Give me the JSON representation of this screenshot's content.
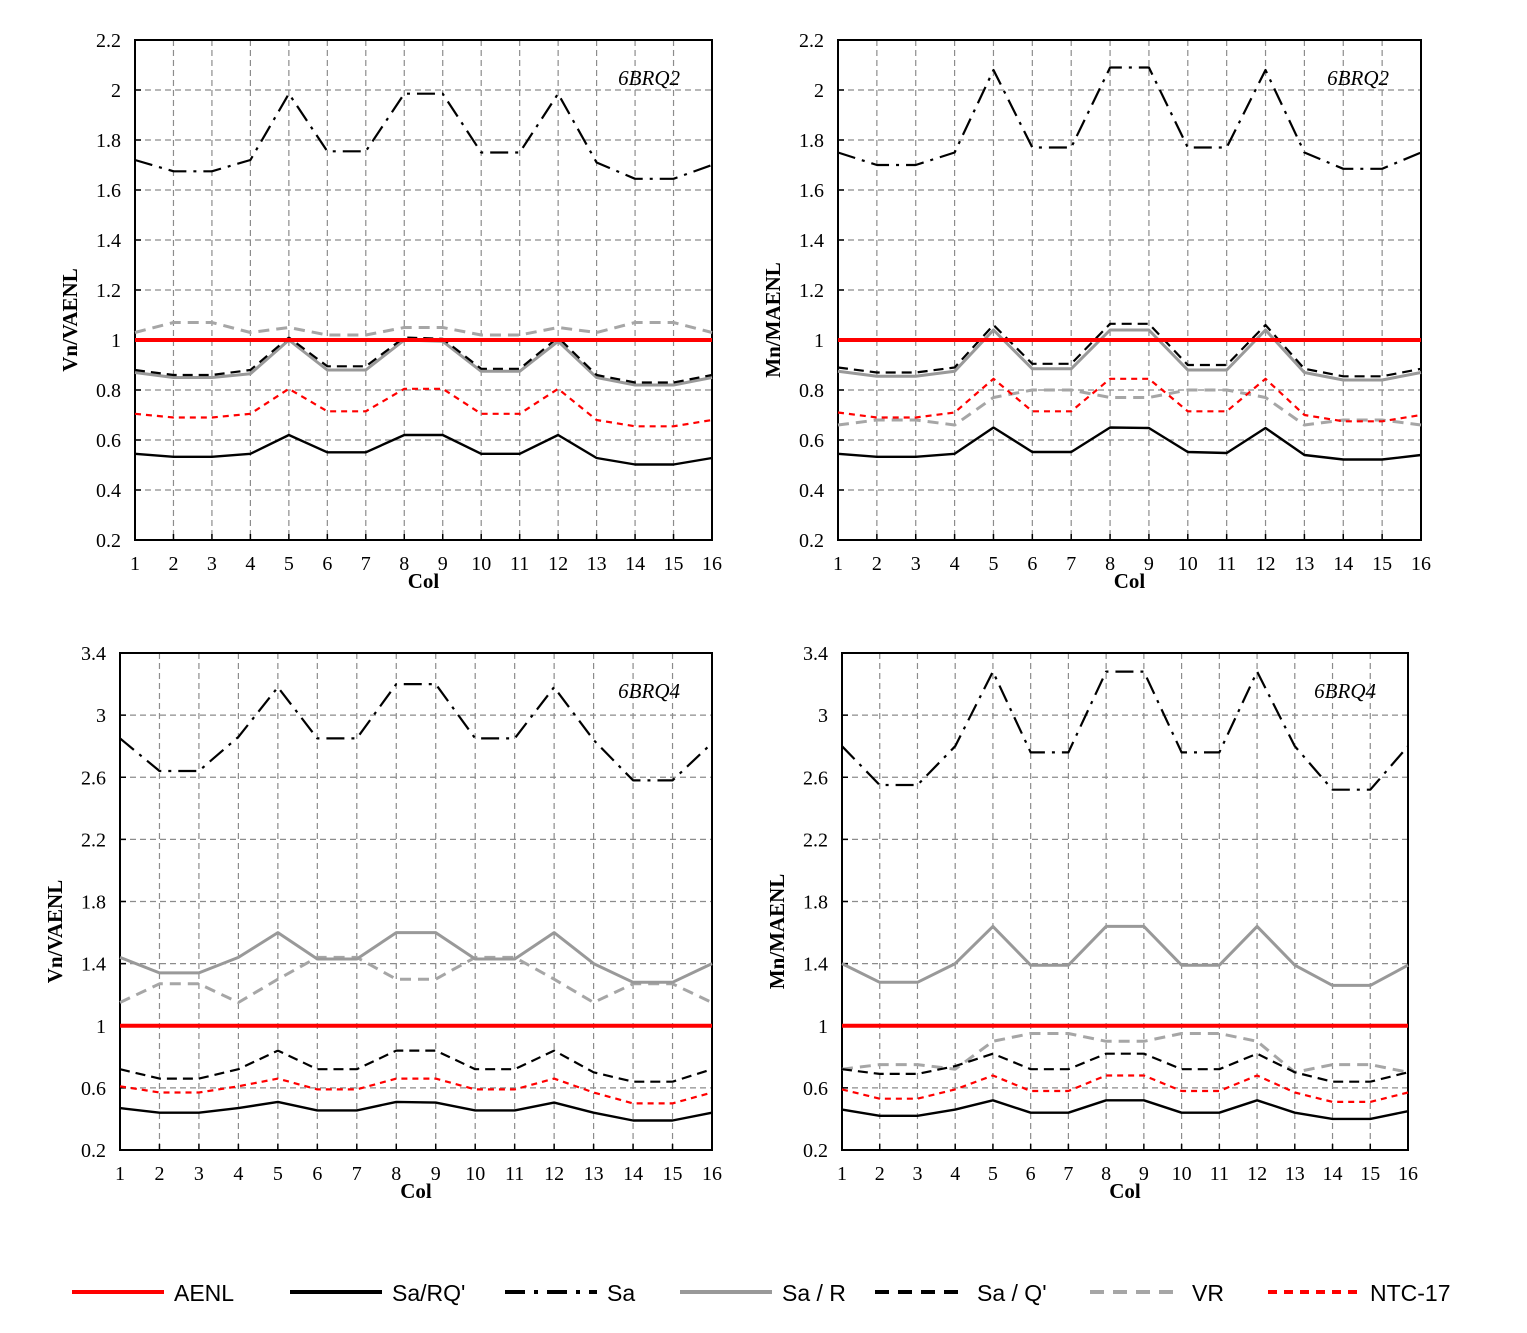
{
  "chart_data": [
    {
      "type": "line",
      "annotation": "6BRQ2",
      "xlabel": "Col",
      "ylabel": "Vn/VAENL",
      "ylim": [
        0.2,
        2.2
      ],
      "yticks": [
        "0.2",
        "0.4",
        "0.6",
        "0.8",
        "1",
        "1.2",
        "1.4",
        "1.6",
        "1.8",
        "2",
        "2.2"
      ],
      "x": [
        1,
        2,
        3,
        4,
        5,
        6,
        7,
        8,
        9,
        10,
        11,
        12,
        13,
        14,
        15,
        16
      ],
      "series": [
        {
          "name": "AENL",
          "values": [
            1,
            1,
            1,
            1,
            1,
            1,
            1,
            1,
            1,
            1,
            1,
            1,
            1,
            1,
            1,
            1
          ]
        },
        {
          "name": "Sa/RQ'",
          "values": [
            0.545,
            0.533,
            0.533,
            0.545,
            0.62,
            0.551,
            0.551,
            0.62,
            0.62,
            0.545,
            0.545,
            0.62,
            0.528,
            0.502,
            0.502,
            0.528
          ]
        },
        {
          "name": "Sa",
          "values": [
            1.72,
            1.675,
            1.675,
            1.72,
            1.985,
            1.755,
            1.755,
            1.985,
            1.985,
            1.75,
            1.75,
            1.985,
            1.71,
            1.645,
            1.645,
            1.7
          ]
        },
        {
          "name": "Sa / R",
          "values": [
            0.87,
            0.85,
            0.85,
            0.865,
            1.0,
            0.88,
            0.88,
            1.0,
            0.995,
            0.875,
            0.875,
            0.995,
            0.85,
            0.82,
            0.82,
            0.85
          ]
        },
        {
          "name": "Sa / Q'",
          "values": [
            0.88,
            0.86,
            0.86,
            0.88,
            1.01,
            0.895,
            0.895,
            1.01,
            1.005,
            0.885,
            0.885,
            1.01,
            0.86,
            0.83,
            0.83,
            0.86
          ]
        },
        {
          "name": "VR",
          "values": [
            1.03,
            1.07,
            1.07,
            1.03,
            1.05,
            1.02,
            1.02,
            1.05,
            1.05,
            1.02,
            1.02,
            1.05,
            1.03,
            1.07,
            1.07,
            1.03
          ]
        },
        {
          "name": "NTC-17",
          "values": [
            0.705,
            0.69,
            0.69,
            0.705,
            0.805,
            0.715,
            0.715,
            0.805,
            0.805,
            0.705,
            0.705,
            0.805,
            0.68,
            0.655,
            0.655,
            0.68
          ]
        }
      ]
    },
    {
      "type": "line",
      "annotation": "6BRQ2",
      "xlabel": "Col",
      "ylabel": "Mn/MAENL",
      "ylim": [
        0.2,
        2.2
      ],
      "yticks": [
        "0.2",
        "0.4",
        "0.6",
        "0.8",
        "1",
        "1.2",
        "1.4",
        "1.6",
        "1.8",
        "2",
        "2.2"
      ],
      "x": [
        1,
        2,
        3,
        4,
        5,
        6,
        7,
        8,
        9,
        10,
        11,
        12,
        13,
        14,
        15,
        16
      ],
      "series": [
        {
          "name": "AENL",
          "values": [
            1,
            1,
            1,
            1,
            1,
            1,
            1,
            1,
            1,
            1,
            1,
            1,
            1,
            1,
            1,
            1
          ]
        },
        {
          "name": "Sa/RQ'",
          "values": [
            0.545,
            0.533,
            0.533,
            0.545,
            0.65,
            0.552,
            0.552,
            0.65,
            0.648,
            0.552,
            0.548,
            0.648,
            0.54,
            0.522,
            0.522,
            0.54
          ]
        },
        {
          "name": "Sa",
          "values": [
            1.75,
            1.7,
            1.7,
            1.75,
            2.08,
            1.77,
            1.77,
            2.09,
            2.09,
            1.77,
            1.77,
            2.08,
            1.75,
            1.685,
            1.685,
            1.75
          ]
        },
        {
          "name": "Sa / R",
          "values": [
            0.875,
            0.855,
            0.855,
            0.875,
            1.04,
            0.885,
            0.885,
            1.04,
            1.04,
            0.88,
            0.88,
            1.04,
            0.87,
            0.84,
            0.84,
            0.87
          ]
        },
        {
          "name": "Sa / Q'",
          "values": [
            0.89,
            0.87,
            0.87,
            0.89,
            1.06,
            0.905,
            0.905,
            1.065,
            1.065,
            0.9,
            0.9,
            1.06,
            0.885,
            0.855,
            0.855,
            0.885
          ]
        },
        {
          "name": "VR",
          "values": [
            0.66,
            0.68,
            0.68,
            0.66,
            0.77,
            0.8,
            0.8,
            0.77,
            0.77,
            0.8,
            0.8,
            0.77,
            0.66,
            0.68,
            0.68,
            0.66
          ]
        },
        {
          "name": "NTC-17",
          "values": [
            0.71,
            0.69,
            0.69,
            0.71,
            0.845,
            0.715,
            0.715,
            0.845,
            0.845,
            0.715,
            0.715,
            0.845,
            0.7,
            0.675,
            0.675,
            0.7
          ]
        }
      ]
    },
    {
      "type": "line",
      "annotation": "6BRQ4",
      "xlabel": "Col",
      "ylabel": "Vn/VAENL",
      "ylim": [
        0.2,
        3.4
      ],
      "yticks": [
        "0.2",
        "0.6",
        "1",
        "1.4",
        "1.8",
        "2.2",
        "2.6",
        "3",
        "3.4"
      ],
      "x": [
        1,
        2,
        3,
        4,
        5,
        6,
        7,
        8,
        9,
        10,
        11,
        12,
        13,
        14,
        15,
        16
      ],
      "series": [
        {
          "name": "AENL",
          "values": [
            1,
            1,
            1,
            1,
            1,
            1,
            1,
            1,
            1,
            1,
            1,
            1,
            1,
            1,
            1,
            1
          ]
        },
        {
          "name": "Sa/RQ'",
          "values": [
            0.47,
            0.44,
            0.44,
            0.47,
            0.51,
            0.455,
            0.455,
            0.51,
            0.505,
            0.455,
            0.455,
            0.505,
            0.44,
            0.39,
            0.39,
            0.44
          ]
        },
        {
          "name": "Sa",
          "values": [
            2.85,
            2.64,
            2.64,
            2.86,
            3.18,
            2.85,
            2.85,
            3.2,
            3.2,
            2.85,
            2.85,
            3.18,
            2.84,
            2.58,
            2.58,
            2.82
          ]
        },
        {
          "name": "Sa / R",
          "values": [
            1.44,
            1.34,
            1.34,
            1.44,
            1.6,
            1.43,
            1.43,
            1.6,
            1.6,
            1.43,
            1.43,
            1.6,
            1.4,
            1.28,
            1.28,
            1.4
          ]
        },
        {
          "name": "Sa / Q'",
          "values": [
            0.72,
            0.66,
            0.66,
            0.72,
            0.84,
            0.72,
            0.72,
            0.84,
            0.84,
            0.72,
            0.72,
            0.84,
            0.7,
            0.64,
            0.64,
            0.72
          ]
        },
        {
          "name": "VR",
          "values": [
            1.15,
            1.27,
            1.27,
            1.15,
            1.3,
            1.44,
            1.44,
            1.3,
            1.3,
            1.44,
            1.44,
            1.3,
            1.15,
            1.27,
            1.27,
            1.15
          ]
        },
        {
          "name": "NTC-17",
          "values": [
            0.61,
            0.57,
            0.57,
            0.61,
            0.66,
            0.59,
            0.59,
            0.66,
            0.66,
            0.59,
            0.59,
            0.66,
            0.57,
            0.5,
            0.5,
            0.57
          ]
        }
      ]
    },
    {
      "type": "line",
      "annotation": "6BRQ4",
      "xlabel": "Col",
      "ylabel": "Mn/MAENL",
      "ylim": [
        0.2,
        3.4
      ],
      "yticks": [
        "0.2",
        "0.6",
        "1",
        "1.4",
        "1.8",
        "2.2",
        "2.6",
        "3",
        "3.4"
      ],
      "x": [
        1,
        2,
        3,
        4,
        5,
        6,
        7,
        8,
        9,
        10,
        11,
        12,
        13,
        14,
        15,
        16
      ],
      "series": [
        {
          "name": "AENL",
          "values": [
            1,
            1,
            1,
            1,
            1,
            1,
            1,
            1,
            1,
            1,
            1,
            1,
            1,
            1,
            1,
            1
          ]
        },
        {
          "name": "Sa/RQ'",
          "values": [
            0.46,
            0.42,
            0.42,
            0.46,
            0.52,
            0.44,
            0.44,
            0.52,
            0.52,
            0.44,
            0.44,
            0.52,
            0.44,
            0.4,
            0.4,
            0.45
          ]
        },
        {
          "name": "Sa",
          "values": [
            2.8,
            2.55,
            2.55,
            2.8,
            3.28,
            2.76,
            2.76,
            3.28,
            3.28,
            2.76,
            2.76,
            3.28,
            2.8,
            2.52,
            2.52,
            2.8
          ]
        },
        {
          "name": "Sa / R",
          "values": [
            1.4,
            1.28,
            1.28,
            1.4,
            1.64,
            1.39,
            1.39,
            1.64,
            1.64,
            1.39,
            1.39,
            1.64,
            1.39,
            1.26,
            1.26,
            1.39
          ]
        },
        {
          "name": "Sa / Q'",
          "values": [
            0.72,
            0.69,
            0.69,
            0.74,
            0.82,
            0.72,
            0.72,
            0.82,
            0.82,
            0.72,
            0.72,
            0.82,
            0.7,
            0.64,
            0.64,
            0.7
          ]
        },
        {
          "name": "VR",
          "values": [
            0.72,
            0.75,
            0.75,
            0.72,
            0.9,
            0.95,
            0.95,
            0.9,
            0.9,
            0.95,
            0.95,
            0.9,
            0.7,
            0.75,
            0.75,
            0.7
          ]
        },
        {
          "name": "NTC-17",
          "values": [
            0.59,
            0.53,
            0.53,
            0.59,
            0.68,
            0.58,
            0.58,
            0.68,
            0.68,
            0.58,
            0.58,
            0.68,
            0.57,
            0.51,
            0.51,
            0.57
          ]
        }
      ]
    }
  ],
  "legend": [
    {
      "label": "AENL",
      "color": "#ff0000",
      "dash": "solid"
    },
    {
      "label": "Sa/RQ'",
      "color": "#000000",
      "dash": "solid"
    },
    {
      "label": "Sa",
      "color": "#000000",
      "dash": "dashdot"
    },
    {
      "label": "Sa / R",
      "color": "#999999",
      "dash": "solid"
    },
    {
      "label": "Sa / Q'",
      "color": "#000000",
      "dash": "dash"
    },
    {
      "label": "VR",
      "color": "#a6a6a6",
      "dash": "dash"
    },
    {
      "label": "NTC-17",
      "color": "#ff0000",
      "dash": "dot"
    }
  ]
}
